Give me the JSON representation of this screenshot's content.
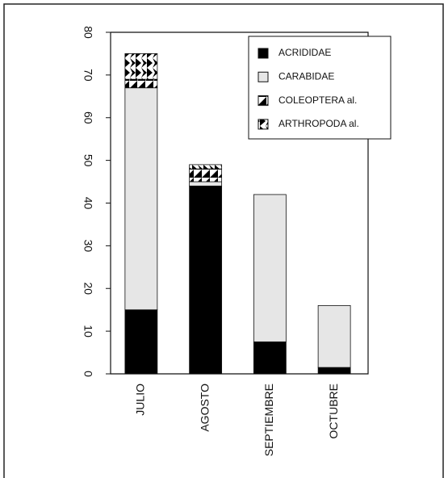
{
  "chart_data": {
    "type": "stacked_bar",
    "categories": [
      "JULIO",
      "AGOSTO",
      "SEPTIEMBRE",
      "OCTUBRE"
    ],
    "series": [
      {
        "name": "ACRIDIDAE",
        "color": "#000000",
        "values": [
          15,
          44,
          7.5,
          1.5
        ]
      },
      {
        "name": "CARABIDAE",
        "color": "#e6e6e6",
        "values": [
          52,
          1,
          34.5,
          14.5
        ]
      },
      {
        "name": "COLEOPTERA al.",
        "color": "#000000",
        "values": [
          2,
          3,
          0,
          0
        ]
      },
      {
        "name": "ARTHROPODA al.",
        "color": "#000000",
        "values": [
          6,
          1,
          0,
          0
        ]
      }
    ],
    "ylim": [
      0,
      80
    ],
    "yticks": [
      0,
      10,
      20,
      30,
      40,
      50,
      60,
      70,
      80
    ],
    "legend": "upper right"
  }
}
